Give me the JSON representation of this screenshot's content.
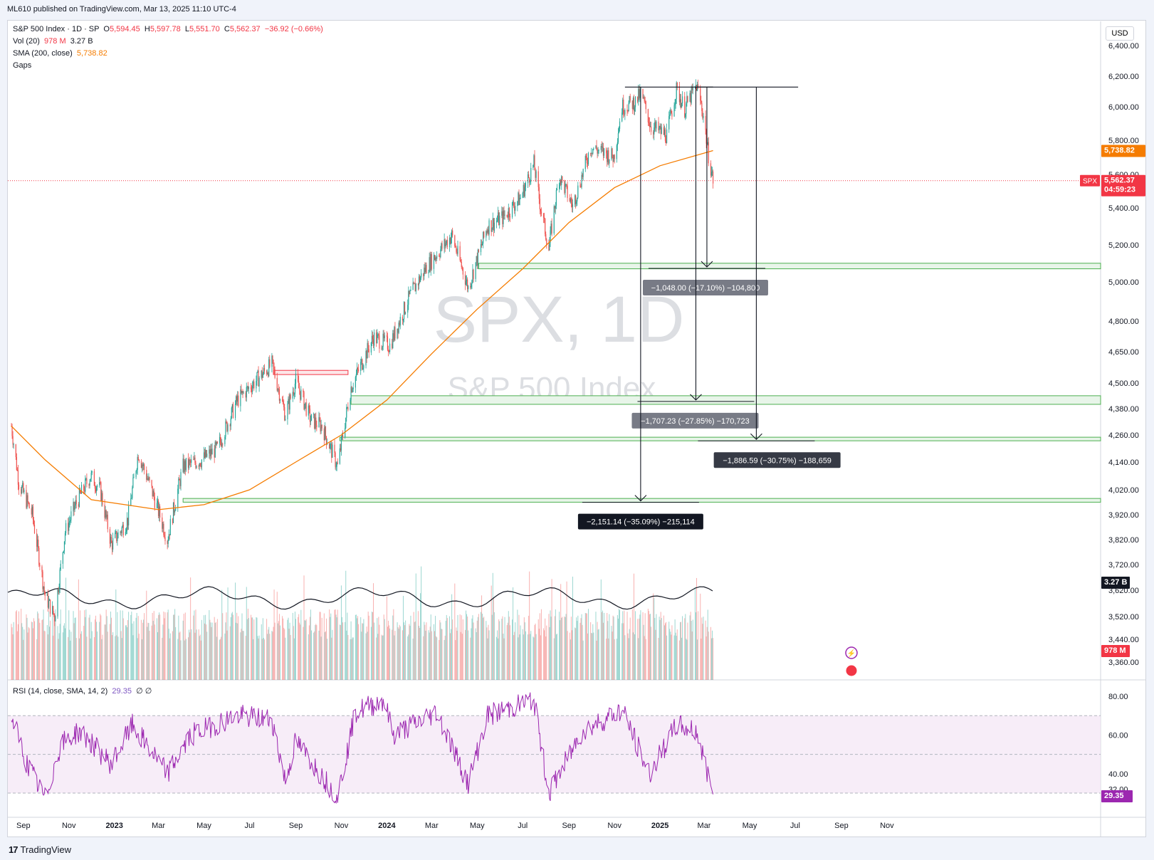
{
  "header": {
    "published": "ML610 published on TradingView.com, Mar 13, 2025 11:10 UTC-4",
    "currency": "USD"
  },
  "legend": {
    "symbol": "S&P 500 Index · 1D · SP",
    "o_label": "O",
    "o": "5,594.45",
    "h_label": "H",
    "h": "5,597.78",
    "l_label": "L",
    "l": "5,551.70",
    "c_label": "C",
    "c": "5,562.37",
    "change": "−36.92 (−0.66%)",
    "vol_label": "Vol (20)",
    "vol_a": "978 M",
    "vol_b": "3.27 B",
    "sma_label": "SMA (200, close)",
    "sma_value": "5,738.82",
    "gaps_label": "Gaps",
    "rsi_label": "RSI (14, close, SMA, 14, 2)",
    "rsi_value": "29.35",
    "rsi_extra": "∅ ∅"
  },
  "watermark": {
    "symbol": "SPX, 1D",
    "name": "S&P 500 Index"
  },
  "price_tags": {
    "sma": "5,738.82",
    "spx_label": "SPX",
    "last": "5,562.37",
    "countdown": "04:59:23",
    "vol_avg": "3.27 B",
    "vol_now": "978 M",
    "rsi": "29.35"
  },
  "colors": {
    "up": "#26a69a",
    "down": "#ef5350",
    "sma": "#f57c00",
    "rsi": "#9c27b0",
    "gap": "#4caf50",
    "gap_down": "#f23645"
  },
  "measurements": [
    {
      "label": "−1,048.00 (−17.10%) −104,800",
      "target": 5080
    },
    {
      "label": "−1,707.23 (−27.85%) −170,723",
      "target": 4420
    },
    {
      "label": "−1,886.59 (−30.75%) −188,659",
      "target": 4240
    },
    {
      "label": "−2,151.14 (−35.09%) −215,114",
      "target": 3975
    }
  ],
  "chart_data": {
    "type": "candlestick",
    "symbol": "SPX",
    "interval": "1D",
    "last_close": 5562.37,
    "sma200_last": 5738.82,
    "top_level": 6128,
    "price_axis_ticks": [
      "6,400.00",
      "6,200.00",
      "6,000.00",
      "5,800.00",
      "5,600.00",
      "5,400.00",
      "5,200.00",
      "5,000.00",
      "4,800.00",
      "4,650.00",
      "4,500.00",
      "4,380.00",
      "4,260.00",
      "4,140.00",
      "4,020.00",
      "3,920.00",
      "3,820.00",
      "3,720.00",
      "3,620.00",
      "3,520.00",
      "3,440.00",
      "3,360.00"
    ],
    "rsi_axis_ticks": [
      "80.00",
      "60.00",
      "40.00",
      "32.00"
    ],
    "time_axis_ticks": [
      "Sep",
      "Nov",
      "2023",
      "Mar",
      "May",
      "Jul",
      "Sep",
      "Nov",
      "2024",
      "Mar",
      "May",
      "Jul",
      "Sep",
      "Nov",
      "2025",
      "Mar",
      "May",
      "Jul",
      "Sep",
      "Nov"
    ],
    "price_path": [
      [
        "2022-08-16",
        4300
      ],
      [
        "2022-08-26",
        4050
      ],
      [
        "2022-09-13",
        3920
      ],
      [
        "2022-09-30",
        3600
      ],
      [
        "2022-10-13",
        3520
      ],
      [
        "2022-10-27",
        3850
      ],
      [
        "2022-11-10",
        3960
      ],
      [
        "2022-11-30",
        4080
      ],
      [
        "2022-12-13",
        4020
      ],
      [
        "2022-12-28",
        3800
      ],
      [
        "2023-01-19",
        3900
      ],
      [
        "2023-02-02",
        4180
      ],
      [
        "2023-02-22",
        4000
      ],
      [
        "2023-03-13",
        3820
      ],
      [
        "2023-04-03",
        4120
      ],
      [
        "2023-04-28",
        4150
      ],
      [
        "2023-05-19",
        4200
      ],
      [
        "2023-06-15",
        4420
      ],
      [
        "2023-07-31",
        4590
      ],
      [
        "2023-08-18",
        4350
      ],
      [
        "2023-09-01",
        4510
      ],
      [
        "2023-09-21",
        4330
      ],
      [
        "2023-10-06",
        4300
      ],
      [
        "2023-10-27",
        4120
      ],
      [
        "2023-11-14",
        4480
      ],
      [
        "2023-12-14",
        4720
      ],
      [
        "2024-01-05",
        4680
      ],
      [
        "2024-01-31",
        4920
      ],
      [
        "2024-02-23",
        5080
      ],
      [
        "2024-03-28",
        5250
      ],
      [
        "2024-04-19",
        4970
      ],
      [
        "2024-05-15",
        5300
      ],
      [
        "2024-06-05",
        5350
      ],
      [
        "2024-06-28",
        5460
      ],
      [
        "2024-07-16",
        5660
      ],
      [
        "2024-07-25",
        5400
      ],
      [
        "2024-08-05",
        5180
      ],
      [
        "2024-08-19",
        5590
      ],
      [
        "2024-09-06",
        5410
      ],
      [
        "2024-09-30",
        5760
      ],
      [
        "2024-10-31",
        5700
      ],
      [
        "2024-11-11",
        6000
      ],
      [
        "2024-11-29",
        6030
      ],
      [
        "2024-12-06",
        6090
      ],
      [
        "2024-12-20",
        5880
      ],
      [
        "2025-01-10",
        5830
      ],
      [
        "2025-01-23",
        6110
      ],
      [
        "2025-02-03",
        5990
      ],
      [
        "2025-02-19",
        6140
      ],
      [
        "2025-02-28",
        5950
      ],
      [
        "2025-03-06",
        5740
      ],
      [
        "2025-03-13",
        5562
      ]
    ],
    "sma200_path": [
      [
        "2022-08-16",
        4300
      ],
      [
        "2022-09-30",
        4150
      ],
      [
        "2022-12-01",
        3980
      ],
      [
        "2023-03-01",
        3940
      ],
      [
        "2023-05-01",
        3960
      ],
      [
        "2023-07-01",
        4020
      ],
      [
        "2023-09-01",
        4140
      ],
      [
        "2023-11-01",
        4260
      ],
      [
        "2024-01-01",
        4420
      ],
      [
        "2024-03-01",
        4640
      ],
      [
        "2024-05-01",
        4860
      ],
      [
        "2024-07-01",
        5070
      ],
      [
        "2024-09-01",
        5320
      ],
      [
        "2024-11-01",
        5520
      ],
      [
        "2025-01-01",
        5650
      ],
      [
        "2025-03-13",
        5739
      ]
    ],
    "gap_zones": [
      {
        "start": "2023-04-03",
        "end": "2025-03-13",
        "low": 3970,
        "high": 3985,
        "dir": "up"
      },
      {
        "start": "2023-10-30",
        "end": "2025-03-13",
        "low": 4234,
        "high": 4250,
        "dir": "up"
      },
      {
        "start": "2023-11-14",
        "end": "2025-03-13",
        "low": 4400,
        "high": 4440,
        "dir": "up"
      },
      {
        "start": "2024-05-03",
        "end": "2025-03-13",
        "low": 5070,
        "high": 5100,
        "dir": "up"
      },
      {
        "start": "2023-08-02",
        "end": "2023-11-10",
        "low": 4540,
        "high": 4560,
        "dir": "down"
      }
    ],
    "rsi_bands": {
      "upper": 70,
      "middle": 50,
      "lower": 30
    },
    "rsi_path": [
      [
        "2022-08-16",
        70
      ],
      [
        "2022-09-06",
        45
      ],
      [
        "2022-09-30",
        27
      ],
      [
        "2022-10-21",
        55
      ],
      [
        "2022-11-15",
        62
      ],
      [
        "2022-12-28",
        45
      ],
      [
        "2023-01-25",
        65
      ],
      [
        "2023-03-13",
        40
      ],
      [
        "2023-04-14",
        60
      ],
      [
        "2023-06-13",
        70
      ],
      [
        "2023-07-31",
        68
      ],
      [
        "2023-08-18",
        36
      ],
      [
        "2023-09-01",
        57
      ],
      [
        "2023-10-27",
        28
      ],
      [
        "2023-11-20",
        72
      ],
      [
        "2023-12-28",
        78
      ],
      [
        "2024-01-10",
        60
      ],
      [
        "2024-03-08",
        72
      ],
      [
        "2024-04-19",
        35
      ],
      [
        "2024-05-15",
        70
      ],
      [
        "2024-07-16",
        78
      ],
      [
        "2024-08-05",
        30
      ],
      [
        "2024-09-19",
        62
      ],
      [
        "2024-11-11",
        73
      ],
      [
        "2024-12-18",
        40
      ],
      [
        "2025-01-23",
        65
      ],
      [
        "2025-02-19",
        62
      ],
      [
        "2025-03-13",
        29.35
      ]
    ],
    "volume_note": "daily volume bars with 20-period average"
  }
}
